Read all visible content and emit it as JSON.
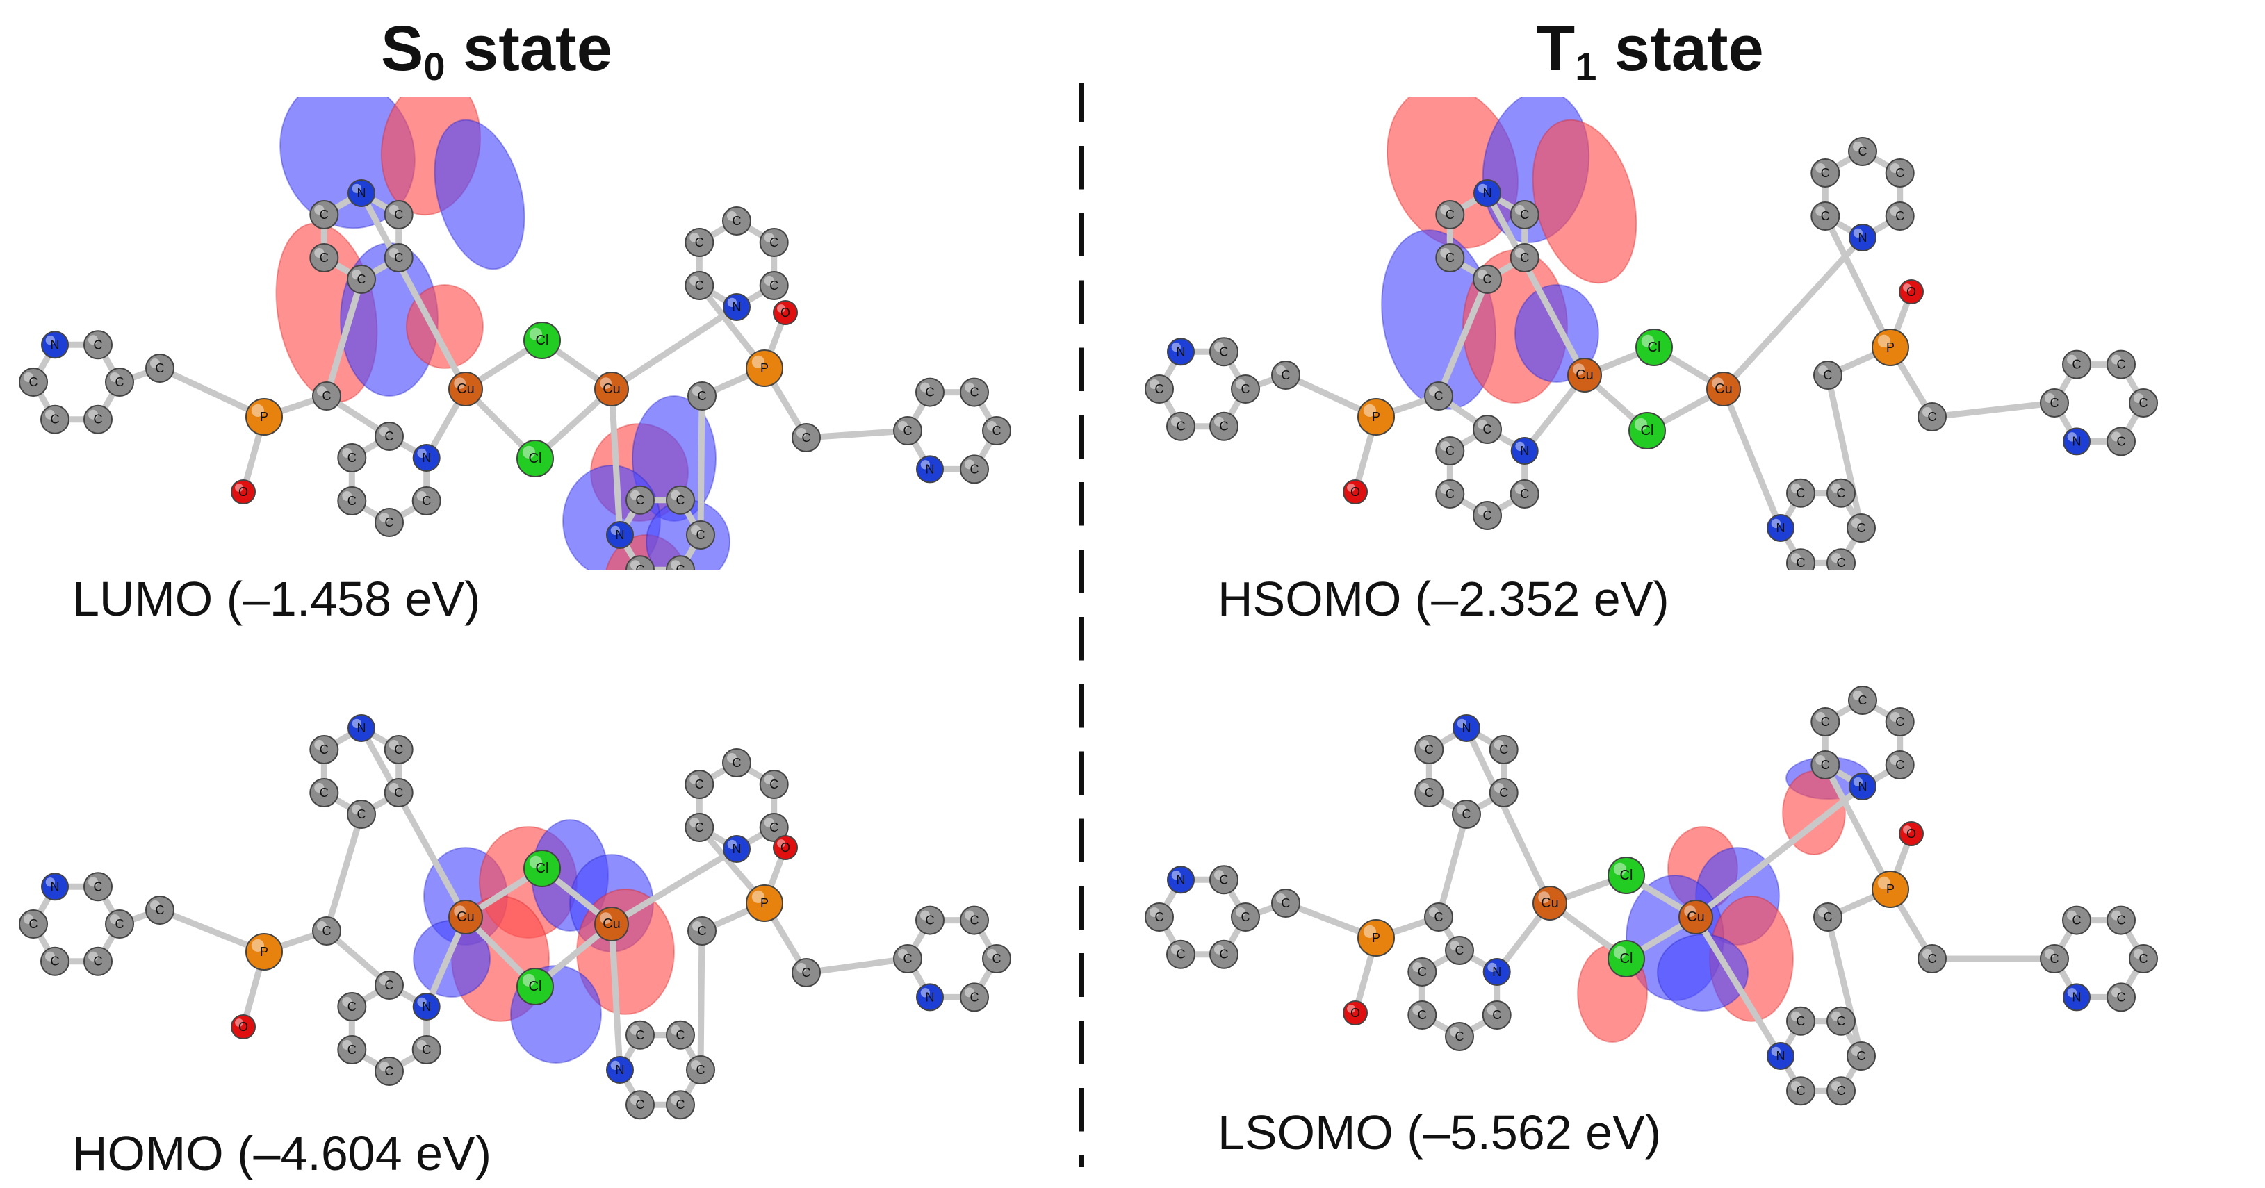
{
  "titles": {
    "s0_main": "S",
    "s0_sub": "0",
    "s0_rest": " state",
    "t1_main": "T",
    "t1_sub": "1",
    "t1_rest": " state"
  },
  "orbitals": [
    {
      "id": "lumo",
      "label": "LUMO (–1.458 eV)"
    },
    {
      "id": "homo",
      "label": "HOMO (–4.604 eV)"
    },
    {
      "id": "hsomo",
      "label": "HSOMO (–2.352 eV)"
    },
    {
      "id": "lsomo",
      "label": "LSOMO (–5.562 eV)"
    }
  ],
  "atom_labels": {
    "carbon": "C",
    "nitrogen": "N",
    "phosphorus": "P",
    "oxygen": "O",
    "copper": "Cu",
    "chlorine": "Cl"
  },
  "colors": {
    "carbon": "#8c8c8c",
    "nitrogen": "#1e3fd6",
    "phosphorus": "#e8820f",
    "oxygen": "#e01010",
    "copper": "#d06018",
    "chlorine": "#22cc22",
    "lobe_positive": "#ff4d4d",
    "lobe_negative": "#4848ff",
    "bond": "#c8c8c8"
  }
}
